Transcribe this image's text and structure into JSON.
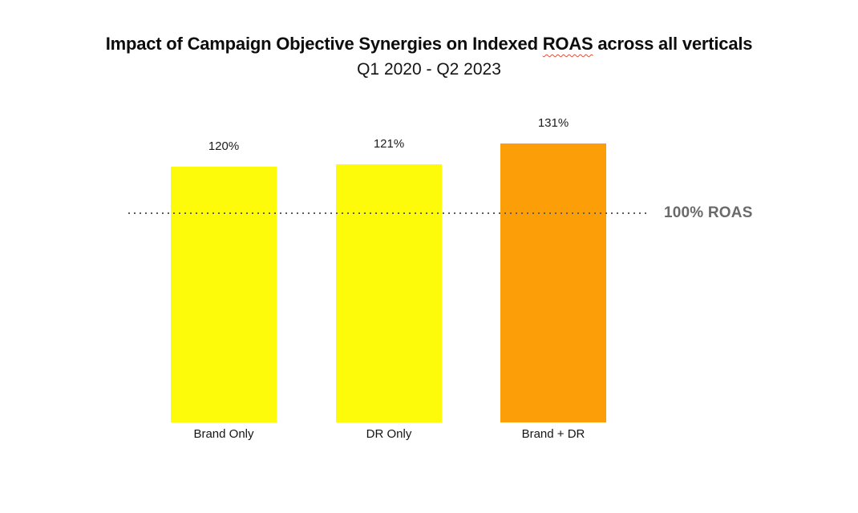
{
  "header": {
    "title_pre": "Impact of Campaign Objective Synergies on Indexed ",
    "title_misspelled_word": "ROAS",
    "title_post": " across all verticals",
    "subtitle": "Q1 2020 - Q2 2023"
  },
  "colors": {
    "yellow_bar": "#FDFA0A",
    "orange_bar": "#FC9E07",
    "reference_line_gray": "#5c5c5c",
    "reference_label_gray": "#6a6a6a",
    "squiggle_red": "#e0503a",
    "title_black": "#0d0d0d",
    "background": "#ffffff"
  },
  "chart_data": {
    "type": "bar",
    "title": "Impact of Campaign Objective Synergies on Indexed ROAS across all verticals",
    "subtitle": "Q1 2020 - Q2 2023",
    "categories": [
      "Brand Only",
      "DR Only",
      "Brand + DR"
    ],
    "values": [
      120,
      121,
      131
    ],
    "value_labels": [
      "120%",
      "121%",
      "131%"
    ],
    "bar_colors": [
      "#FDFA0A",
      "#FDFA0A",
      "#FC9E07"
    ],
    "xlabel": "",
    "ylabel": "",
    "ylim": [
      0,
      155
    ],
    "grid": false,
    "legend": false,
    "axes_visible": false,
    "reference_line": {
      "value": 100,
      "label": "100% ROAS",
      "style": "dotted",
      "drawn_over_bars": true
    }
  }
}
